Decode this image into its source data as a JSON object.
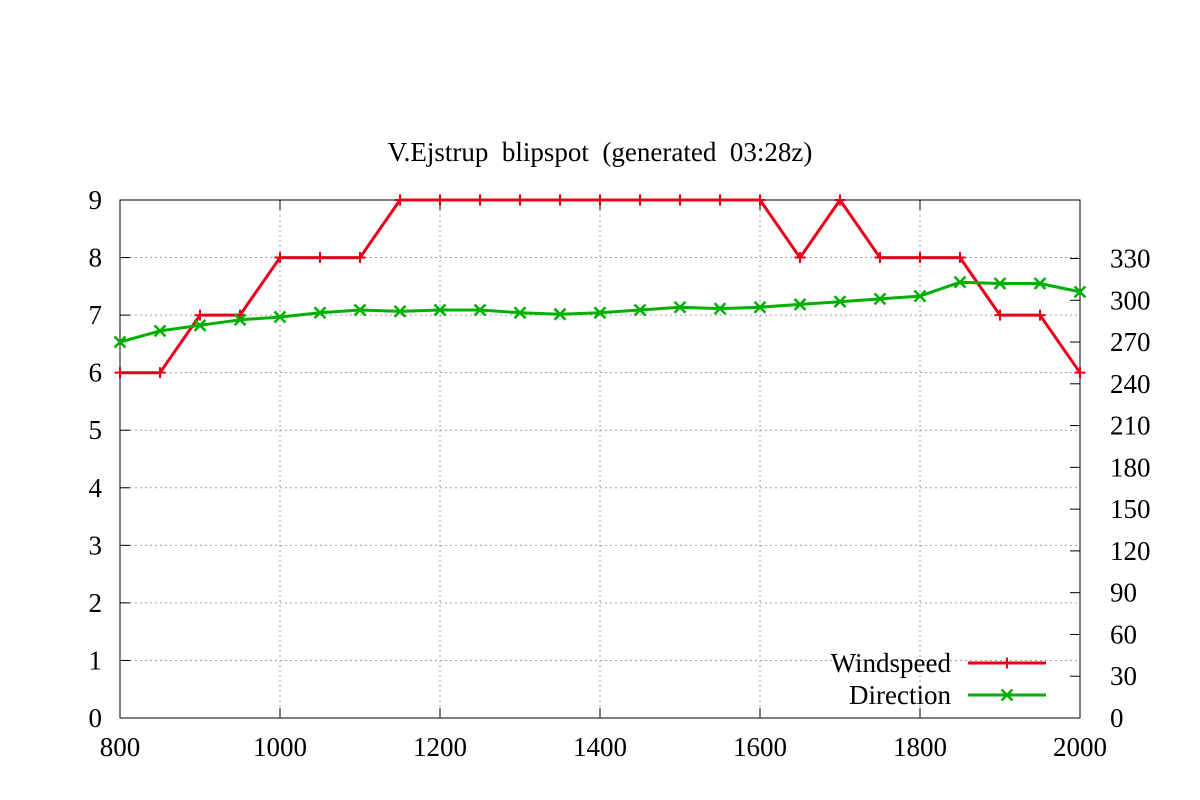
{
  "chart_data": {
    "type": "line",
    "title": "V.Ejstrup  blipspot  (generated  03:28z)",
    "xlabel": "",
    "ylabel": "",
    "y2label": "",
    "xlim": [
      800,
      2000
    ],
    "ylim": [
      0,
      9
    ],
    "y2lim": [
      0,
      372
    ],
    "grid": true,
    "legend_position": "bottom-right",
    "x_ticks": [
      "800",
      "1000",
      "1200",
      "1400",
      "1600",
      "1800",
      "2000"
    ],
    "y_ticks": [
      "0",
      "1",
      "2",
      "3",
      "4",
      "5",
      "6",
      "7",
      "8",
      "9"
    ],
    "y2_ticks": [
      "0",
      "30",
      "60",
      "90",
      "120",
      "150",
      "180",
      "210",
      "240",
      "270",
      "300",
      "330"
    ],
    "x": [
      800,
      850,
      900,
      950,
      1000,
      1050,
      1100,
      1150,
      1200,
      1250,
      1300,
      1350,
      1400,
      1450,
      1500,
      1550,
      1600,
      1650,
      1700,
      1750,
      1800,
      1850,
      1900,
      1950,
      2000
    ],
    "series": [
      {
        "name": "Windspeed",
        "axis": "left",
        "color": "#e8001a",
        "marker": "plus",
        "values": [
          6,
          6,
          7,
          7,
          8,
          8,
          8,
          9,
          9,
          9,
          9,
          9,
          9,
          9,
          9,
          9,
          9,
          8,
          9,
          8,
          8,
          8,
          7,
          7,
          6
        ]
      },
      {
        "name": "Direction",
        "axis": "right",
        "color": "#00b000",
        "marker": "cross-box",
        "values": [
          270,
          278,
          282,
          286,
          288,
          291,
          293,
          292,
          293,
          293,
          291,
          290,
          291,
          293,
          295,
          294,
          295,
          297,
          299,
          301,
          303,
          313,
          312,
          312,
          306
        ]
      }
    ]
  }
}
